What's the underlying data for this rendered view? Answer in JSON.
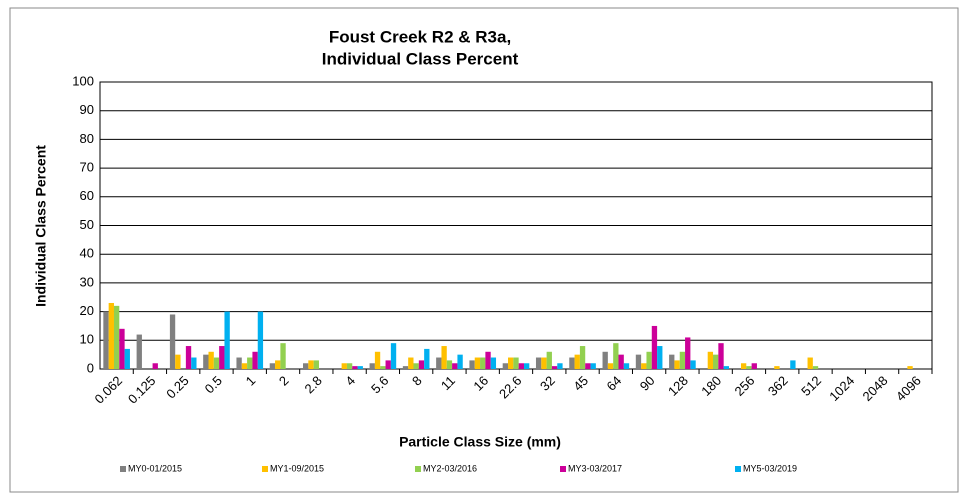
{
  "chart_data": {
    "type": "bar",
    "title": [
      "Foust Creek R2 & R3a,",
      "Individual Class Percent"
    ],
    "x_label": "Particle Class Size (mm)",
    "y_label": "Individual Class Percent",
    "categories": [
      "0.062",
      "0.125",
      "0.25",
      "0.5",
      "1",
      "2",
      "2.8",
      "4",
      "5.6",
      "8",
      "11",
      "16",
      "22.6",
      "32",
      "45",
      "64",
      "90",
      "128",
      "180",
      "256",
      "362",
      "512",
      "1024",
      "2048",
      "4096"
    ],
    "series": [
      {
        "name": "MY0-01/2015",
        "color": "#808080",
        "values": [
          20,
          12,
          19,
          5,
          4,
          2,
          2,
          0,
          2,
          1,
          4,
          3,
          2,
          4,
          4,
          6,
          5,
          5,
          0,
          0,
          0,
          0,
          0,
          0,
          0
        ]
      },
      {
        "name": "MY1-09/2015",
        "color": "#ffc000",
        "values": [
          23,
          0,
          5,
          6,
          2,
          3,
          3,
          2,
          6,
          4,
          8,
          4,
          4,
          4,
          5,
          2,
          2,
          3,
          6,
          2,
          1,
          4,
          0,
          0,
          1
        ]
      },
      {
        "name": "MY2-03/2016",
        "color": "#92d050",
        "values": [
          22,
          0,
          0,
          4,
          4,
          9,
          3,
          2,
          1,
          2,
          3,
          4,
          4,
          6,
          8,
          9,
          6,
          6,
          5,
          1,
          0,
          1,
          0,
          0,
          0
        ]
      },
      {
        "name": "MY3-03/2017",
        "color": "#cc0099",
        "values": [
          14,
          2,
          8,
          8,
          6,
          0,
          0,
          1,
          3,
          3,
          2,
          6,
          2,
          1,
          2,
          5,
          15,
          11,
          9,
          2,
          0,
          0,
          0,
          0,
          0
        ]
      },
      {
        "name": "MY5-03/2019",
        "color": "#00b0f0",
        "values": [
          7,
          0,
          4,
          20,
          20,
          0,
          0,
          1,
          9,
          7,
          5,
          4,
          2,
          2,
          2,
          2,
          8,
          3,
          1,
          0,
          3,
          0,
          0,
          0,
          0
        ]
      }
    ],
    "ylim": [
      0,
      100
    ],
    "yticks": [
      0,
      10,
      20,
      30,
      40,
      50,
      60,
      70,
      80,
      90,
      100
    ],
    "grid": true,
    "legend": "bottom"
  }
}
